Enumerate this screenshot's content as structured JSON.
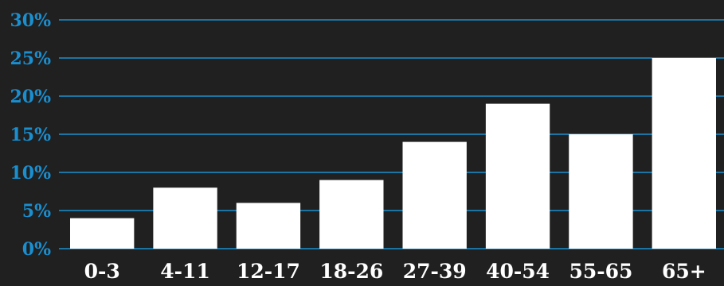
{
  "chart_data": {
    "type": "bar",
    "title": "",
    "xlabel": "",
    "ylabel": "",
    "categories": [
      "0-3",
      "4-11",
      "12-17",
      "18-26",
      "27-39",
      "40-54",
      "55-65",
      "65+"
    ],
    "values": [
      4,
      8,
      6,
      9,
      14,
      19,
      15,
      25
    ],
    "ylim": [
      0,
      30
    ],
    "yticks": [
      0,
      5,
      10,
      15,
      20,
      25,
      30
    ],
    "ytick_labels": [
      "0%",
      "5%",
      "10%",
      "15%",
      "20%",
      "25%",
      "30%"
    ],
    "grid": true,
    "legend": "none",
    "colors": {
      "background": "#202020",
      "bar": "#ffffff",
      "grid": "#1a8fd0",
      "ytick_text": "#1a8fd0",
      "xtick_text": "#ffffff"
    }
  }
}
